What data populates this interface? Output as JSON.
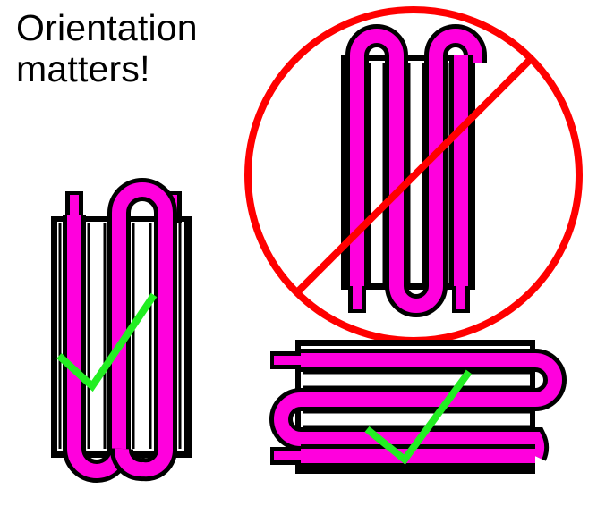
{
  "title": {
    "line1": "Orientation",
    "line2": "matters!"
  },
  "colors": {
    "tube": "#ff00dd",
    "outline": "#000000",
    "fin": "#ffffff",
    "prohibit": "#ff0000",
    "check": "#22ee22"
  },
  "figures": [
    {
      "name": "vertical-radiator-ports-up",
      "orientation": "vertical, bends at bottom, ports at top",
      "status": "correct"
    },
    {
      "name": "vertical-radiator-ports-down",
      "orientation": "vertical, bends at top, ports at bottom",
      "status": "prohibited"
    },
    {
      "name": "horizontal-radiator",
      "orientation": "horizontal, bends at right, ports at left",
      "status": "correct"
    }
  ],
  "symbols": [
    "check-mark-icon",
    "prohibited-icon",
    "check-mark-icon"
  ]
}
